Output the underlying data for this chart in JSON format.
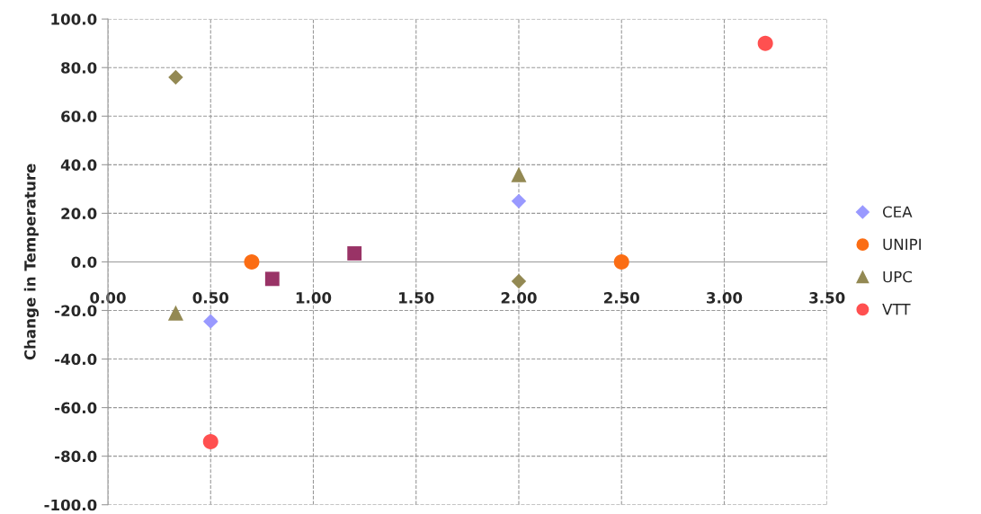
{
  "chart_data": {
    "type": "scatter",
    "ylabel": "Change in Temperature",
    "xlim": [
      0,
      3.5
    ],
    "ylim": [
      -100,
      100
    ],
    "xticks": [
      {
        "value": 0,
        "label": "0.00"
      },
      {
        "value": 0.5,
        "label": "0.50"
      },
      {
        "value": 1,
        "label": "1.00"
      },
      {
        "value": 1.5,
        "label": "1.50"
      },
      {
        "value": 2,
        "label": "2.00"
      },
      {
        "value": 2.5,
        "label": "2.50"
      },
      {
        "value": 3,
        "label": "3.00"
      },
      {
        "value": 3.5,
        "label": "3.50"
      }
    ],
    "yticks": [
      {
        "value": -100,
        "label": "-100.0"
      },
      {
        "value": -80,
        "label": "-80.0"
      },
      {
        "value": -60,
        "label": "-60.0"
      },
      {
        "value": -40,
        "label": "-40.0"
      },
      {
        "value": -20,
        "label": "-20.0"
      },
      {
        "value": 0,
        "label": "0.0"
      },
      {
        "value": 20,
        "label": "20.0"
      },
      {
        "value": 40,
        "label": "40.0"
      },
      {
        "value": 60,
        "label": "60.0"
      },
      {
        "value": 80,
        "label": "80.0"
      },
      {
        "value": 100,
        "label": "100.0"
      }
    ],
    "grid": true,
    "legend": "right",
    "series": [
      {
        "name": "CEA",
        "color": "#9999ff",
        "marker": "diamond",
        "x": [
          0.5,
          2.0
        ],
        "values": [
          -24.5,
          25
        ]
      },
      {
        "color": "#993366",
        "marker": "square",
        "x": [
          0.8,
          1.2
        ],
        "values": [
          -7,
          3.5
        ]
      },
      {
        "name": "UNIPI",
        "color": "#fb6d14",
        "marker": "circle",
        "x": [
          0.7,
          2.5
        ],
        "values": [
          0,
          0
        ]
      },
      {
        "name": "UPC",
        "color": "#938953",
        "marker": "triangle",
        "x": [
          0.33,
          2.0
        ],
        "values": [
          -21,
          36
        ]
      },
      {
        "name": "VTT",
        "color": "#ff5050",
        "marker": "circle",
        "x": [
          0.5,
          3.2
        ],
        "values": [
          -74,
          90
        ]
      },
      {
        "color": "#938953",
        "marker": "diamond",
        "x": [
          0.33,
          2.0
        ],
        "values": [
          76,
          -8
        ]
      }
    ]
  }
}
